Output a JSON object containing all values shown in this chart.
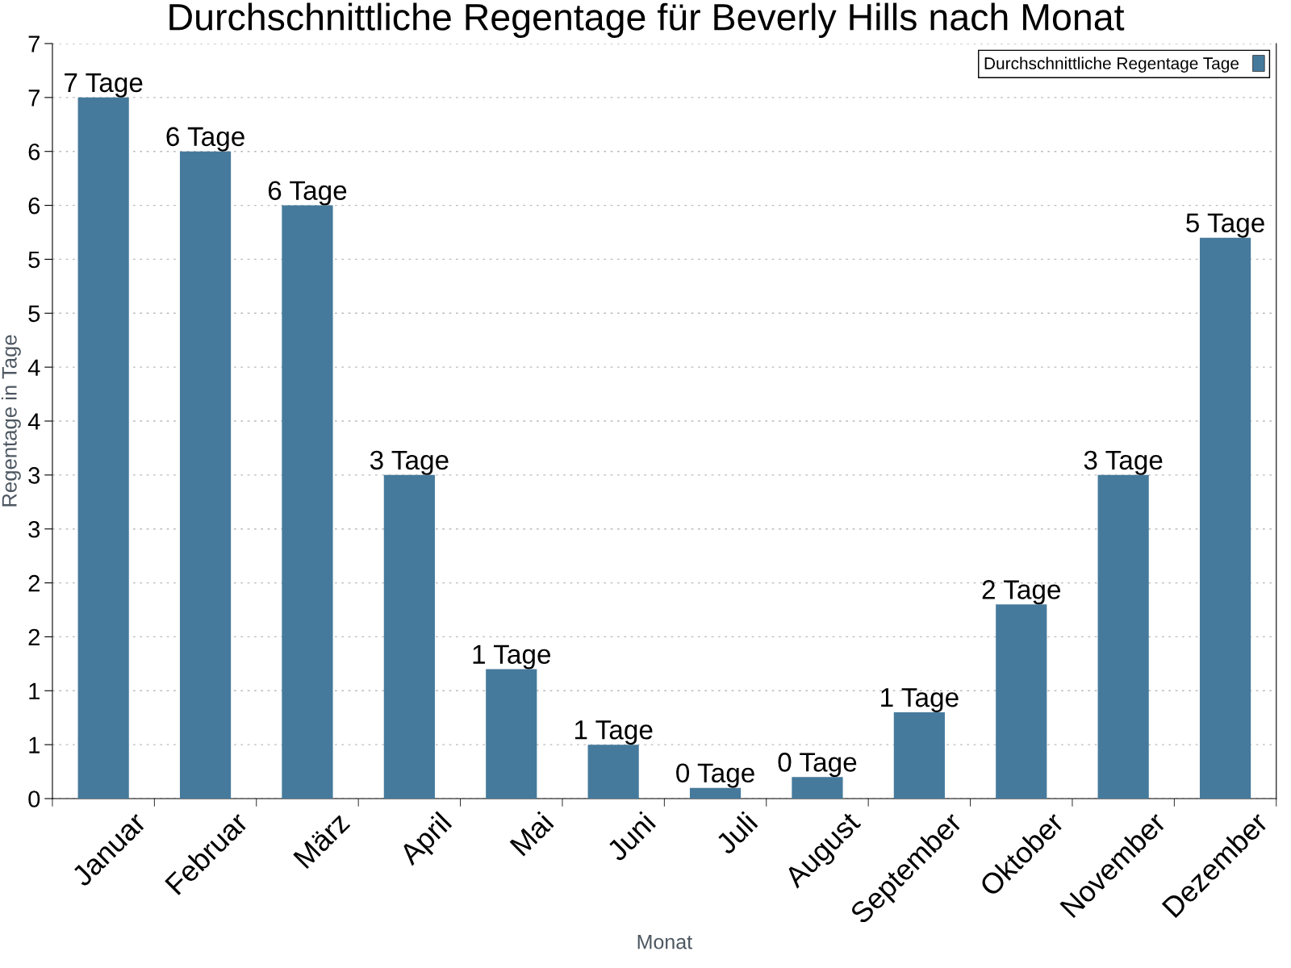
{
  "chart_data": {
    "type": "bar",
    "title": "Durchschnittliche Regentage für Beverly Hills nach Monat",
    "xlabel": "Monat",
    "ylabel": "Regentage in Tage",
    "categories": [
      "Januar",
      "Februar",
      "März",
      "April",
      "Mai",
      "Juni",
      "Juli",
      "August",
      "September",
      "Oktober",
      "November",
      "Dezember"
    ],
    "series": [
      {
        "name": "Durchschnittliche Regentage Tage",
        "color": "#467a9c",
        "values": [
          6.5,
          6.0,
          5.5,
          3.0,
          1.2,
          0.5,
          0.1,
          0.2,
          0.8,
          1.8,
          3.0,
          5.2
        ],
        "value_labels": [
          "7 Tage",
          "6 Tage",
          "6 Tage",
          "3 Tage",
          "1 Tage",
          "1 Tage",
          "0 Tage",
          "0 Tage",
          "1 Tage",
          "2 Tage",
          "3 Tage",
          "5 Tage"
        ]
      }
    ],
    "ylim": [
      0,
      7
    ],
    "yticks": [
      0,
      {
        "value": 0.5,
        "label": "1"
      },
      1,
      {
        "value": 1.5,
        "label": "2"
      },
      2,
      {
        "value": 2.5,
        "label": "3"
      },
      3,
      {
        "value": 3.5,
        "label": "4"
      },
      4,
      {
        "value": 4.5,
        "label": "5"
      },
      5,
      {
        "value": 5.5,
        "label": "6"
      },
      6,
      {
        "value": 6.5,
        "label": "7"
      },
      7
    ],
    "grid": "y",
    "legend": "top right"
  }
}
